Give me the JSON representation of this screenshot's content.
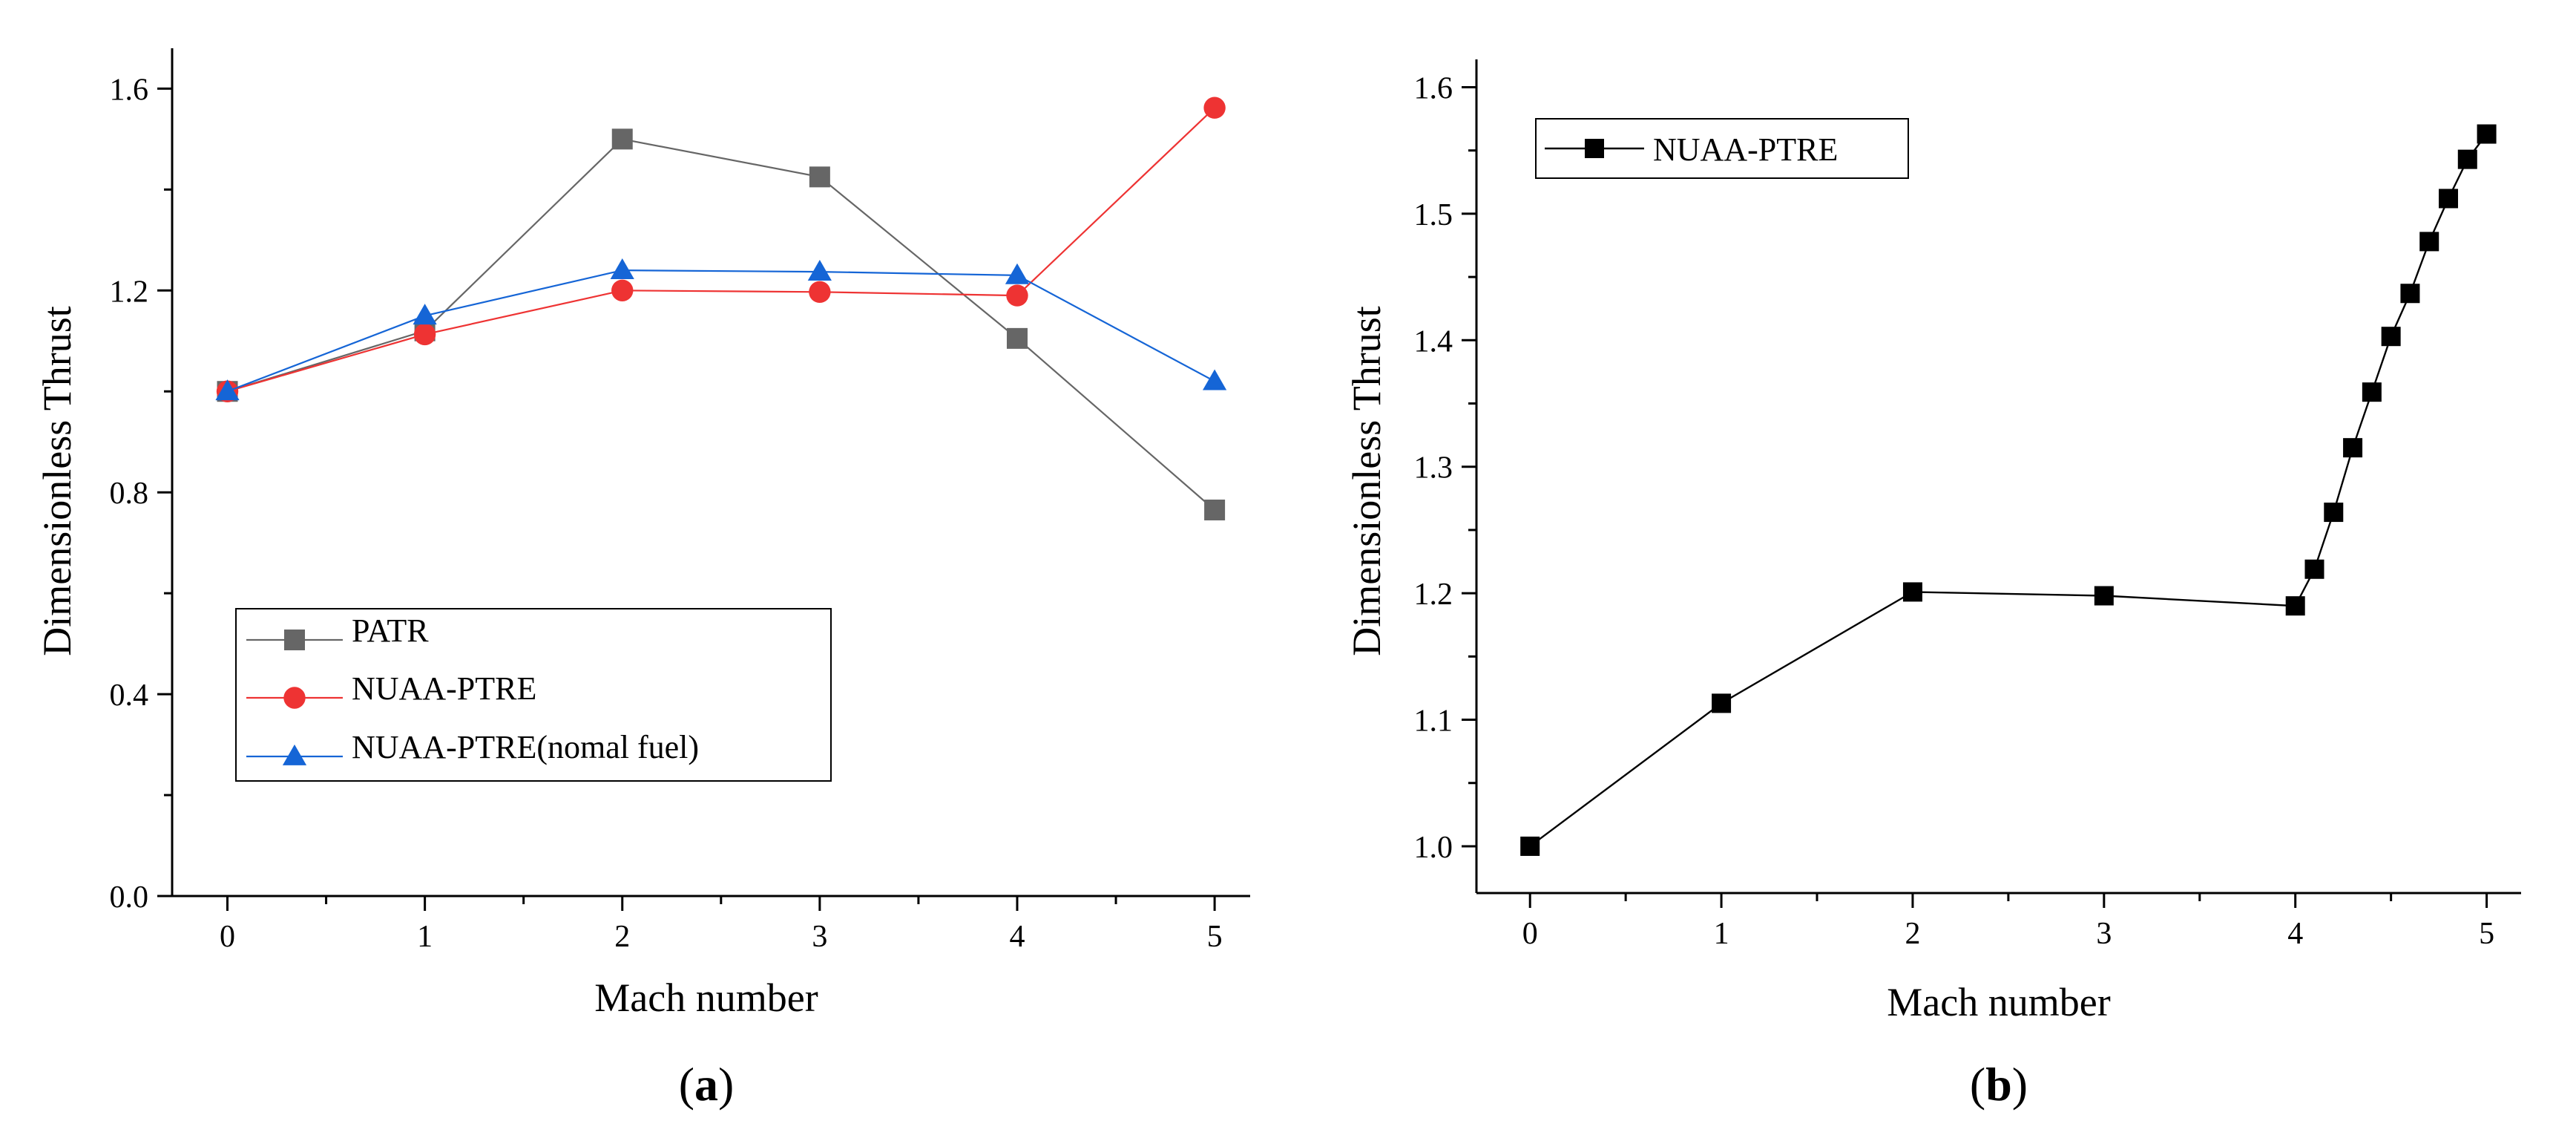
{
  "chart_data": [
    {
      "type": "line",
      "panel_label": "a",
      "xlabel": "Mach number",
      "ylabel": "Dimensionless Thrust",
      "xlim": [
        -0.28,
        5.18
      ],
      "ylim": [
        0.0,
        1.68
      ],
      "xticks": [
        0,
        1,
        2,
        3,
        4,
        5
      ],
      "xtick_labels": [
        "0",
        "1",
        "2",
        "3",
        "4",
        "5"
      ],
      "yticks": [
        0.0,
        0.4,
        0.8,
        1.2,
        1.6
      ],
      "ytick_labels": [
        "0.0",
        "0.4",
        "0.8",
        "1.2",
        "1.6"
      ],
      "legend_position": "lower-left",
      "series": [
        {
          "name": "PATR",
          "color": "#666666",
          "marker": "square",
          "x": [
            0,
            1,
            2,
            3,
            4,
            5
          ],
          "y": [
            1.0,
            1.12,
            1.5,
            1.425,
            1.105,
            0.765
          ]
        },
        {
          "name": "NUAA-PTRE",
          "color": "#ee3333",
          "marker": "circle",
          "x": [
            0,
            1,
            2,
            3,
            4,
            5
          ],
          "y": [
            1.0,
            1.113,
            1.2,
            1.197,
            1.19,
            1.562
          ]
        },
        {
          "name": "NUAA-PTRE(nomal fuel)",
          "color": "#1565d6",
          "marker": "triangle",
          "x": [
            0,
            1,
            2,
            3,
            4,
            5
          ],
          "y": [
            1.0,
            1.15,
            1.24,
            1.237,
            1.23,
            1.02
          ]
        }
      ]
    },
    {
      "type": "line",
      "panel_label": "b",
      "xlabel": "Mach number",
      "ylabel": "Dimensionless Thrust",
      "xlim": [
        -0.28,
        5.18
      ],
      "ylim": [
        0.963,
        1.622
      ],
      "xticks": [
        0,
        1,
        2,
        3,
        4,
        5
      ],
      "xtick_labels": [
        "0",
        "1",
        "2",
        "3",
        "4",
        "5"
      ],
      "yticks": [
        1.0,
        1.1,
        1.2,
        1.3,
        1.4,
        1.5,
        1.6
      ],
      "ytick_labels": [
        "1.0",
        "1.1",
        "1.2",
        "1.3",
        "1.4",
        "1.5",
        "1.6"
      ],
      "legend_position": "top-left",
      "series": [
        {
          "name": "NUAA-PTRE",
          "color": "#000000",
          "marker": "square",
          "x": [
            0,
            1,
            2,
            3,
            4,
            4.1,
            4.2,
            4.3,
            4.4,
            4.5,
            4.6,
            4.7,
            4.8,
            4.9,
            5.0
          ],
          "y": [
            1.0,
            1.113,
            1.201,
            1.198,
            1.19,
            1.219,
            1.264,
            1.315,
            1.359,
            1.403,
            1.437,
            1.478,
            1.512,
            1.543,
            1.563
          ]
        }
      ]
    }
  ]
}
